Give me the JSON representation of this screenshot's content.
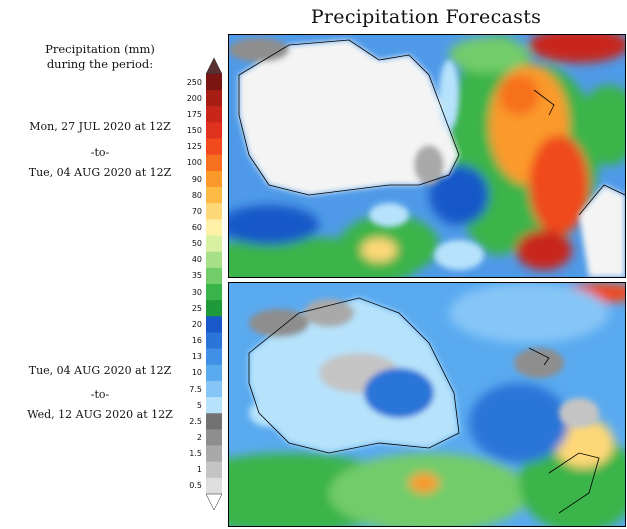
{
  "page": {
    "title": "Precipitation Forecasts"
  },
  "legend": {
    "title_line1": "Precipitation (mm)",
    "title_line2": "during the period:",
    "ticks": [
      "250",
      "200",
      "175",
      "150",
      "125",
      "100",
      "90",
      "80",
      "70",
      "60",
      "50",
      "40",
      "35",
      "30",
      "25",
      "20",
      "16",
      "13",
      "10",
      "7.5",
      "5",
      "2.5",
      "2",
      "1.5",
      "1",
      "0.5"
    ],
    "colors": [
      "#7a1512",
      "#a61d14",
      "#c8261a",
      "#e0321f",
      "#f04a1e",
      "#f7701f",
      "#fb9a2a",
      "#fdbb46",
      "#fed877",
      "#fff0a8",
      "#d8f0a2",
      "#a8e08a",
      "#72cc6a",
      "#3ab44a",
      "#1e9a3a",
      "#1858c8",
      "#2b74d8",
      "#3f90e6",
      "#5aaaf0",
      "#86c6f7",
      "#b6e2fb",
      "#727272",
      "#8e8e8e",
      "#a9a9a9",
      "#c4c4c4",
      "#dedede"
    ]
  },
  "periods": [
    {
      "start": "Mon, 27 JUL 2020 at 12Z",
      "separator": "-to-",
      "end": "Tue, 04 AUG 2020 at 12Z"
    },
    {
      "start": "Tue, 04 AUG 2020 at 12Z",
      "separator": "-to-",
      "end": "Wed, 12 AUG 2020 at 12Z"
    }
  ]
}
